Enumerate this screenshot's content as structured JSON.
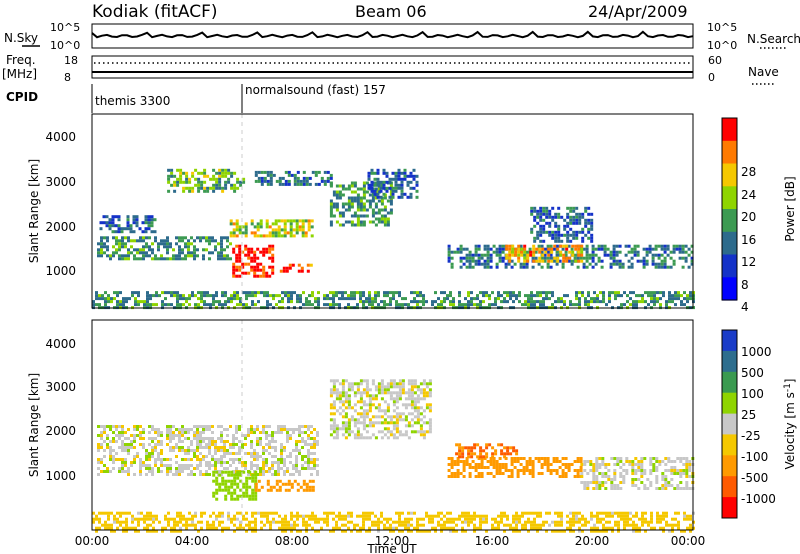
{
  "header": {
    "station": "Kodiak (fitACF)",
    "beam": "Beam 06",
    "date": "24/Apr/2009"
  },
  "strip": {
    "nsky_label": "N.Sky",
    "nsearch_label": "N.Search",
    "nsky_ticks": [
      "10^5",
      "10^0"
    ],
    "nsearch_ticks": [
      "10^5",
      "10^0"
    ],
    "freq_label": "Freq.",
    "freq_unit": "[MHz]",
    "freq_ticks": [
      "18",
      "8"
    ],
    "nave_label": "Nave",
    "nave_ticks": [
      "60",
      "0"
    ],
    "cpid_label": "CPID",
    "cpid_segments": [
      {
        "name": "themis 3300",
        "start_hour": 0
      },
      {
        "name": "normalsound (fast) 157",
        "start_hour": 6
      }
    ]
  },
  "panels": {
    "y_label": "Slant Range [km]",
    "y_ticks": [
      "4000",
      "3000",
      "2000",
      "1000"
    ],
    "x_label": "Time UT",
    "x_ticks": [
      "00:00",
      "04:00",
      "08:00",
      "12:00",
      "16:00",
      "20:00",
      "00:00"
    ]
  },
  "power_bar": {
    "label": "Power [dB]",
    "ticks": [
      "28",
      "24",
      "20",
      "16",
      "12",
      "8",
      "4"
    ],
    "colors": [
      "#ff0000",
      "#ff7a00",
      "#f5c800",
      "#8fd400",
      "#3c9a52",
      "#2d6b8c",
      "#1432c8",
      "#0000ff"
    ]
  },
  "velocity_bar": {
    "label": "Velocity [m s",
    "label_sup": "-1",
    "label_end": "]",
    "ticks": [
      "1000",
      "500",
      "100",
      "25",
      "-25",
      "-100",
      "-500",
      "-1000"
    ],
    "colors": [
      "#1a3cc8",
      "#2e6e8e",
      "#3a9a50",
      "#8fd400",
      "#c8c8c8",
      "#f5c800",
      "#ff9a00",
      "#ff5a00",
      "#ff0000"
    ]
  },
  "chart_data": {
    "type": "heatmap",
    "title": "Kodiak (fitACF)  Beam 06  24/Apr/2009",
    "xlabel": "Time UT",
    "ylabel": "Slant Range [km]",
    "xlim_hours": [
      0,
      24
    ],
    "ylim_km": [
      0,
      4600
    ],
    "grid": false,
    "colorbars": [
      "Power [dB]",
      "Velocity [m s-1]"
    ],
    "power_regions": [
      {
        "t0": 0.2,
        "t1": 5.5,
        "r0": 1200,
        "r1": 1700,
        "level": 12
      },
      {
        "t0": 0.3,
        "t1": 2.5,
        "r0": 1800,
        "r1": 2200,
        "level": 8
      },
      {
        "t0": 3.0,
        "t1": 6.0,
        "r0": 2800,
        "r1": 3300,
        "level": 14
      },
      {
        "t0": 5.5,
        "t1": 8.8,
        "r0": 1700,
        "r1": 2100,
        "level": 18
      },
      {
        "t0": 5.6,
        "t1": 7.2,
        "r0": 750,
        "r1": 1500,
        "level": 28
      },
      {
        "t0": 7.5,
        "t1": 8.8,
        "r0": 850,
        "r1": 1050,
        "level": 26
      },
      {
        "t0": 6.5,
        "t1": 9.5,
        "r0": 2900,
        "r1": 3250,
        "level": 10
      },
      {
        "t0": 9.5,
        "t1": 12.0,
        "r0": 2000,
        "r1": 3000,
        "level": 12
      },
      {
        "t0": 11.0,
        "t1": 13.0,
        "r0": 2600,
        "r1": 3300,
        "level": 8
      },
      {
        "t0": 14.2,
        "t1": 24.0,
        "r0": 950,
        "r1": 1500,
        "level": 10
      },
      {
        "t0": 16.5,
        "t1": 19.5,
        "r0": 1100,
        "r1": 1500,
        "level": 22
      },
      {
        "t0": 17.5,
        "t1": 20.0,
        "r0": 1600,
        "r1": 2400,
        "level": 8
      },
      {
        "t0": 0.0,
        "t1": 24.0,
        "r0": 0,
        "r1": 400,
        "level": 12
      }
    ],
    "velocity_regions": [
      {
        "t0": 0.2,
        "t1": 9.0,
        "r0": 1200,
        "r1": 2300,
        "velocity": 0
      },
      {
        "t0": 4.8,
        "t1": 6.5,
        "r0": 700,
        "r1": 1300,
        "velocity": 150
      },
      {
        "t0": 6.5,
        "t1": 8.8,
        "r0": 900,
        "r1": 1100,
        "velocity": -150
      },
      {
        "t0": 9.5,
        "t1": 13.5,
        "r0": 2000,
        "r1": 3300,
        "velocity": 0
      },
      {
        "t0": 14.2,
        "t1": 19.5,
        "r0": 1200,
        "r1": 1600,
        "velocity": -150
      },
      {
        "t0": 14.5,
        "t1": 17.0,
        "r0": 1600,
        "r1": 1900,
        "velocity": -300
      },
      {
        "t0": 19.5,
        "t1": 24.0,
        "r0": 900,
        "r1": 1600,
        "velocity": 0
      },
      {
        "t0": 0.0,
        "t1": 24.0,
        "r0": 0,
        "r1": 400,
        "velocity": -60
      }
    ]
  }
}
